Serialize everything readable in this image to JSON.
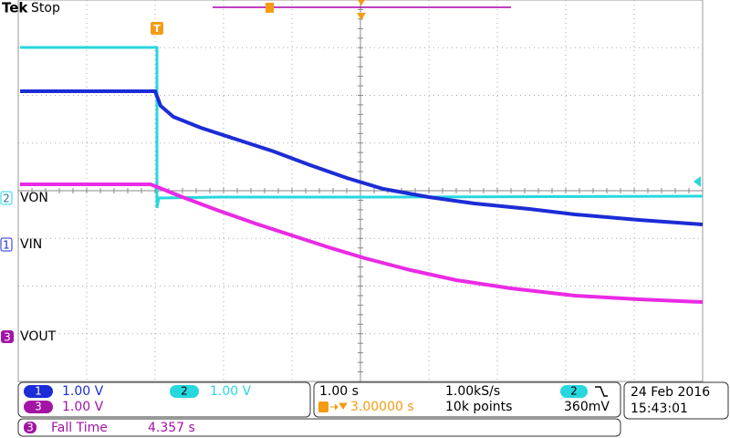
{
  "header": {
    "brand": "Tek",
    "status": "Stop"
  },
  "channels": [
    {
      "number": "1",
      "label": "VIN",
      "scale": "1.00 V"
    },
    {
      "number": "2",
      "label": "VON",
      "scale": "1.00 V"
    },
    {
      "number": "3",
      "label": "VOUT",
      "scale": "1.00 V"
    }
  ],
  "trigger": {
    "marker": "T",
    "channel": "2",
    "level": "360mV",
    "position": "3.00000 s"
  },
  "timebase": {
    "scale": "1.00 s",
    "sample_rate": "1.00kS/s",
    "record_length": "10k points"
  },
  "measurement": {
    "channel": "3",
    "name": "Fall Time",
    "value": "4.357 s"
  },
  "timestamp": {
    "date": "24 Feb 2016",
    "time": "15:43:01"
  }
}
